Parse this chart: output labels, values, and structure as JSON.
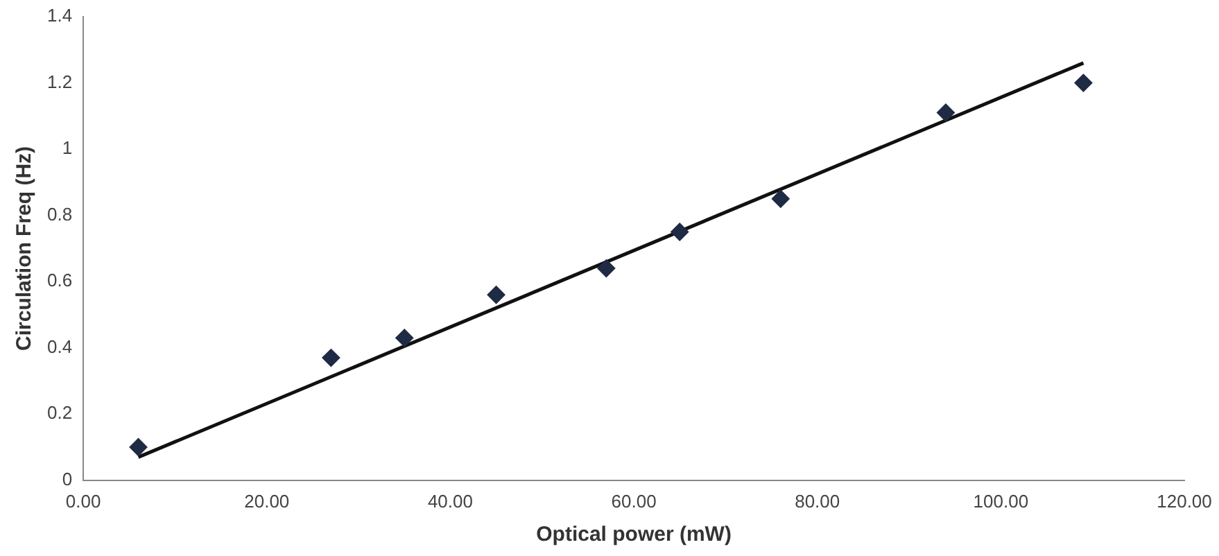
{
  "chart_data": {
    "type": "scatter",
    "xlabel": "Optical power (mW)",
    "ylabel": "Circulation Freq (Hz)",
    "x": [
      6,
      27,
      35,
      45,
      57,
      65,
      76,
      94,
      109
    ],
    "series": [
      {
        "type": "scatter",
        "color": "#1f2a44",
        "marker": "diamond",
        "values": [
          0.1,
          0.37,
          0.43,
          0.56,
          0.64,
          0.75,
          0.85,
          1.11,
          1.2
        ]
      },
      {
        "type": "line",
        "color": "#111111",
        "marker": "none",
        "x": [
          6,
          109
        ],
        "values": [
          0.07,
          1.26
        ]
      }
    ],
    "xlim": [
      0,
      120
    ],
    "ylim": [
      0,
      1.4
    ],
    "xticks": [
      {
        "value": 0,
        "label": "0.00"
      },
      {
        "value": 20,
        "label": "20.00"
      },
      {
        "value": 40,
        "label": "40.00"
      },
      {
        "value": 60,
        "label": "60.00"
      },
      {
        "value": 80,
        "label": "80.00"
      },
      {
        "value": 100,
        "label": "100.00"
      },
      {
        "value": 120,
        "label": "120.00"
      }
    ],
    "yticks": [
      0,
      0.2,
      0.4,
      0.6,
      0.8,
      1,
      1.2,
      1.4
    ],
    "grid": false,
    "legend": false
  }
}
